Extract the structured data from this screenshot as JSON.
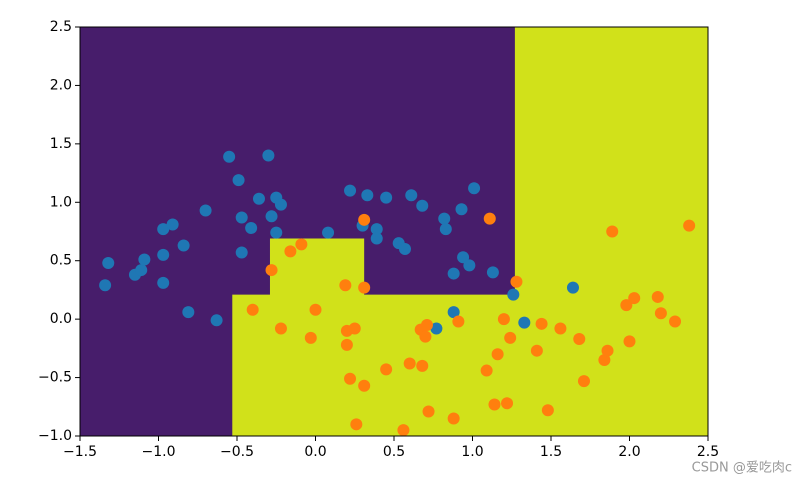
{
  "chart_data": {
    "type": "scatter",
    "regions": [
      {
        "color": "#471d6b",
        "x": [
          -1.5,
          2.5,
          2.5,
          -1.5
        ],
        "y": [
          -1,
          -1,
          2.5,
          2.5
        ]
      },
      {
        "color": "#d1e11a",
        "x": [
          -0.53,
          -0.53,
          -0.29,
          -0.29,
          0.31,
          0.31,
          1.27,
          1.27,
          2.5,
          2.5
        ],
        "y": [
          -1,
          0.21,
          0.21,
          0.69,
          0.69,
          0.21,
          0.21,
          2.5,
          2.5,
          -1
        ]
      }
    ],
    "series": [
      {
        "color": "#1f77b4",
        "x": [
          -1.34,
          -1.32,
          -1.15,
          -1.11,
          -1.09,
          -0.97,
          -0.91,
          -0.97,
          -0.97,
          -0.84,
          -0.81,
          -0.7,
          -0.63,
          -0.55,
          -0.49,
          -0.47,
          -0.47,
          -0.41,
          -0.36,
          -0.3,
          -0.28,
          -0.25,
          -0.22,
          -0.25,
          0.08,
          0.22,
          0.3,
          0.33,
          0.39,
          0.39,
          0.45,
          0.53,
          0.57,
          0.61,
          0.68,
          0.82,
          0.83,
          0.88,
          0.93,
          0.94,
          0.98,
          1.01,
          1.13,
          1.26,
          0.77,
          0.88,
          1.33,
          1.64
        ],
        "values": [
          0.29,
          0.48,
          0.38,
          0.42,
          0.51,
          0.77,
          0.81,
          0.55,
          0.31,
          0.63,
          0.06,
          0.93,
          -0.01,
          1.39,
          1.19,
          0.87,
          0.57,
          0.78,
          1.03,
          1.4,
          0.88,
          1.04,
          0.98,
          0.74,
          0.74,
          1.1,
          0.8,
          1.06,
          0.77,
          0.69,
          1.04,
          0.65,
          0.6,
          1.06,
          0.97,
          0.86,
          0.77,
          0.39,
          0.94,
          0.53,
          0.46,
          1.12,
          0.4,
          0.21,
          -0.08,
          0.06,
          -0.03,
          0.27
        ]
      },
      {
        "color": "#ff7f0e",
        "x": [
          0.31,
          1.11,
          -0.28,
          -0.16,
          -0.09,
          -0.4,
          -0.22,
          0.0,
          -0.03,
          0.19,
          0.31,
          0.2,
          0.25,
          0.2,
          0.22,
          0.31,
          0.26,
          0.45,
          0.56,
          0.6,
          0.68,
          0.67,
          0.71,
          0.7,
          0.72,
          0.88,
          0.91,
          1.09,
          1.14,
          1.16,
          1.2,
          1.22,
          1.24,
          1.28,
          1.41,
          1.44,
          1.48,
          1.56,
          1.68,
          1.71,
          1.84,
          1.86,
          1.89,
          1.98,
          2.03,
          2.0,
          2.18,
          2.2,
          2.29,
          2.38
        ],
        "values": [
          0.85,
          0.86,
          0.42,
          0.58,
          0.64,
          0.08,
          -0.08,
          0.08,
          -0.16,
          0.29,
          0.27,
          -0.1,
          -0.08,
          -0.22,
          -0.51,
          -0.57,
          -0.9,
          -0.43,
          -0.95,
          -0.38,
          -0.4,
          -0.09,
          -0.05,
          -0.15,
          -0.79,
          -0.85,
          -0.02,
          -0.44,
          -0.73,
          -0.3,
          0.0,
          -0.72,
          -0.16,
          0.32,
          -0.27,
          -0.04,
          -0.78,
          -0.08,
          -0.17,
          -0.53,
          -0.35,
          -0.27,
          0.75,
          0.12,
          0.18,
          -0.19,
          0.19,
          0.05,
          -0.02,
          0.8
        ]
      }
    ],
    "xlim": [
      -1.5,
      2.5
    ],
    "ylim": [
      -1,
      2.5
    ],
    "xticks": [
      {
        "value": -1.5,
        "label": "−1.5"
      },
      {
        "value": -1,
        "label": "−1.0"
      },
      {
        "value": -0.5,
        "label": "−0.5"
      },
      {
        "value": 0,
        "label": "0.0"
      },
      0.5,
      {
        "value": 1,
        "label": "1.0"
      },
      1.5,
      {
        "value": 2,
        "label": "2.0"
      },
      2.5
    ],
    "yticks": [
      {
        "value": -1,
        "label": "−1.0"
      },
      {
        "value": -0.5,
        "label": "−0.5"
      },
      {
        "value": 0,
        "label": "0.0"
      },
      0.5,
      {
        "value": 1,
        "label": "1.0"
      },
      1.5,
      {
        "value": 2,
        "label": "2.0"
      },
      2.5
    ],
    "watermark": "CSDN @爱吃肉c"
  }
}
